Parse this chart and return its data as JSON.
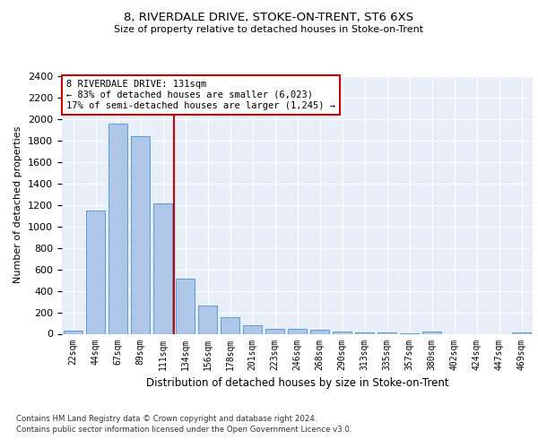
{
  "title": "8, RIVERDALE DRIVE, STOKE-ON-TRENT, ST6 6XS",
  "subtitle": "Size of property relative to detached houses in Stoke-on-Trent",
  "xlabel": "Distribution of detached houses by size in Stoke-on-Trent",
  "ylabel": "Number of detached properties",
  "categories": [
    "22sqm",
    "44sqm",
    "67sqm",
    "89sqm",
    "111sqm",
    "134sqm",
    "156sqm",
    "178sqm",
    "201sqm",
    "223sqm",
    "246sqm",
    "268sqm",
    "290sqm",
    "313sqm",
    "335sqm",
    "357sqm",
    "380sqm",
    "402sqm",
    "424sqm",
    "447sqm",
    "469sqm"
  ],
  "values": [
    30,
    1150,
    1960,
    1840,
    1215,
    515,
    265,
    155,
    80,
    50,
    45,
    40,
    20,
    15,
    10,
    5,
    20,
    0,
    0,
    0,
    15
  ],
  "bar_color": "#aec6e8",
  "bar_edge_color": "#5b9bd5",
  "annotation_text": "8 RIVERDALE DRIVE: 131sqm\n← 83% of detached houses are smaller (6,023)\n17% of semi-detached houses are larger (1,245) →",
  "annotation_box_color": "#ffffff",
  "annotation_box_edge": "#cc0000",
  "vline_color": "#cc0000",
  "footer_line1": "Contains HM Land Registry data © Crown copyright and database right 2024.",
  "footer_line2": "Contains public sector information licensed under the Open Government Licence v3.0.",
  "background_color": "#e8eef7",
  "ylim": [
    0,
    2400
  ],
  "yticks": [
    0,
    200,
    400,
    600,
    800,
    1000,
    1200,
    1400,
    1600,
    1800,
    2000,
    2200,
    2400
  ]
}
